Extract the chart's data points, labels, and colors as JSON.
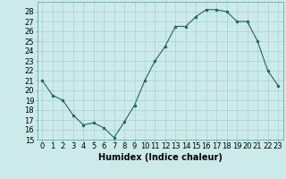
{
  "x": [
    0,
    1,
    2,
    3,
    4,
    5,
    6,
    7,
    8,
    9,
    10,
    11,
    12,
    13,
    14,
    15,
    16,
    17,
    18,
    19,
    20,
    21,
    22,
    23
  ],
  "y": [
    21,
    19.5,
    19,
    17.5,
    16.5,
    16.7,
    16.2,
    15.2,
    16.8,
    18.5,
    21,
    23,
    24.5,
    26.5,
    26.5,
    27.5,
    28.2,
    28.2,
    28,
    27,
    27,
    25,
    22,
    20.5
  ],
  "line_color": "#1a6b5a",
  "marker_color": "#1a6b5a",
  "bg_color": "#cceaea",
  "grid_color": "#aacfcf",
  "xlabel": "Humidex (Indice chaleur)",
  "xlim": [
    -0.5,
    23.5
  ],
  "ylim": [
    15,
    29
  ],
  "yticks": [
    15,
    16,
    17,
    18,
    19,
    20,
    21,
    22,
    23,
    24,
    25,
    26,
    27,
    28
  ],
  "xticks": [
    0,
    1,
    2,
    3,
    4,
    5,
    6,
    7,
    8,
    9,
    10,
    11,
    12,
    13,
    14,
    15,
    16,
    17,
    18,
    19,
    20,
    21,
    22,
    23
  ],
  "tick_fontsize": 6,
  "label_fontsize": 7
}
